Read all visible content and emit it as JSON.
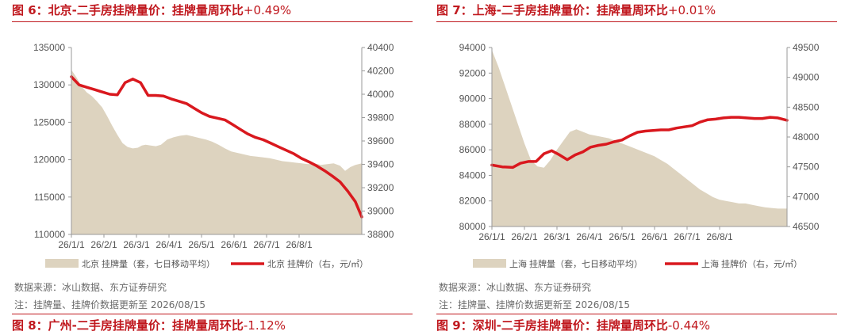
{
  "panels": [
    {
      "fig_title": "图 6：北京-二手房挂牌量价：挂牌量周环比",
      "fig_pct": "+0.49%",
      "source": "数据来源：冰山数据、东方证券研究",
      "note": "注：挂牌量、挂牌价数据更新至 2026/08/15",
      "chart_data": {
        "type": "area+line",
        "x_ticks": [
          "26/1/1",
          "26/2/1",
          "26/3/1",
          "26/4/1",
          "26/5/1",
          "26/6/1",
          "26/7/1",
          "26/8/1"
        ],
        "x_range": [
          0,
          227
        ],
        "left_axis": {
          "ticks": [
            "110000",
            "115000",
            "120000",
            "125000",
            "130000",
            "135000"
          ],
          "ylim": [
            110000,
            135000
          ]
        },
        "right_axis": {
          "ticks": [
            "38800",
            "39000",
            "39200",
            "39400",
            "39600",
            "39800",
            "40000",
            "40200",
            "40400"
          ],
          "ylim": [
            38800,
            40400
          ]
        },
        "series": [
          {
            "name": "北京 挂牌量（套，七日移动平均）",
            "type": "area",
            "axis": "left",
            "color": "#ddd3bf",
            "points": [
              [
                0,
                132000
              ],
              [
                4,
                131000
              ],
              [
                8,
                129800
              ],
              [
                12,
                129000
              ],
              [
                16,
                128500
              ],
              [
                20,
                127800
              ],
              [
                24,
                127000
              ],
              [
                28,
                125800
              ],
              [
                32,
                124500
              ],
              [
                36,
                123300
              ],
              [
                40,
                122200
              ],
              [
                44,
                121700
              ],
              [
                48,
                121500
              ],
              [
                52,
                121600
              ],
              [
                55,
                121900
              ],
              [
                58,
                122000
              ],
              [
                62,
                121900
              ],
              [
                66,
                121800
              ],
              [
                70,
                122000
              ],
              [
                75,
                122700
              ],
              [
                80,
                123000
              ],
              [
                85,
                123200
              ],
              [
                90,
                123300
              ],
              [
                95,
                123100
              ],
              [
                100,
                122900
              ],
              [
                105,
                122700
              ],
              [
                110,
                122400
              ],
              [
                115,
                122000
              ],
              [
                120,
                121500
              ],
              [
                125,
                121100
              ],
              [
                130,
                120900
              ],
              [
                135,
                120700
              ],
              [
                140,
                120500
              ],
              [
                145,
                120400
              ],
              [
                150,
                120300
              ],
              [
                155,
                120200
              ],
              [
                160,
                120000
              ],
              [
                165,
                119800
              ],
              [
                170,
                119700
              ],
              [
                175,
                119600
              ],
              [
                180,
                119500
              ],
              [
                185,
                119400
              ],
              [
                190,
                119500
              ],
              [
                195,
                119300
              ],
              [
                200,
                119400
              ],
              [
                205,
                119500
              ],
              [
                210,
                119200
              ],
              [
                214,
                118500
              ],
              [
                218,
                119000
              ],
              [
                222,
                119300
              ],
              [
                227,
                119500
              ]
            ]
          },
          {
            "name": "北京 挂牌价（右，元/㎡）",
            "type": "line",
            "axis": "right",
            "color": "#d9181e",
            "points": [
              [
                0,
                40150
              ],
              [
                6,
                40080
              ],
              [
                12,
                40060
              ],
              [
                18,
                40040
              ],
              [
                24,
                40020
              ],
              [
                30,
                40000
              ],
              [
                36,
                39995
              ],
              [
                42,
                40100
              ],
              [
                48,
                40130
              ],
              [
                54,
                40100
              ],
              [
                60,
                39990
              ],
              [
                66,
                39990
              ],
              [
                72,
                39985
              ],
              [
                78,
                39960
              ],
              [
                84,
                39940
              ],
              [
                90,
                39920
              ],
              [
                96,
                39880
              ],
              [
                102,
                39840
              ],
              [
                108,
                39810
              ],
              [
                114,
                39795
              ],
              [
                120,
                39780
              ],
              [
                126,
                39740
              ],
              [
                132,
                39700
              ],
              [
                138,
                39660
              ],
              [
                144,
                39630
              ],
              [
                150,
                39610
              ],
              [
                156,
                39580
              ],
              [
                162,
                39550
              ],
              [
                168,
                39520
              ],
              [
                174,
                39490
              ],
              [
                180,
                39450
              ],
              [
                186,
                39420
              ],
              [
                192,
                39385
              ],
              [
                198,
                39345
              ],
              [
                204,
                39300
              ],
              [
                210,
                39250
              ],
              [
                216,
                39170
              ],
              [
                222,
                39080
              ],
              [
                227,
                38950
              ]
            ]
          }
        ]
      }
    },
    {
      "fig_title": "图 7：上海-二手房挂牌量价：挂牌量周环比",
      "fig_pct": "+0.01%",
      "source": "数据来源：冰山数据、东方证券研究",
      "note": "注：挂牌量、挂牌价数据更新至 2026/08/15",
      "chart_data": {
        "type": "area+line",
        "x_ticks": [
          "26/1/1",
          "26/2/1",
          "26/3/1",
          "26/4/1",
          "26/5/1",
          "26/6/1",
          "26/7/1",
          "26/8/1"
        ],
        "x_range": [
          0,
          227
        ],
        "left_axis": {
          "ticks": [
            "80000",
            "82000",
            "84000",
            "86000",
            "88000",
            "90000",
            "92000",
            "94000"
          ],
          "ylim": [
            80000,
            94000
          ]
        },
        "right_axis": {
          "ticks": [
            "46500",
            "47000",
            "47500",
            "48000",
            "48500",
            "49000",
            "49500"
          ],
          "ylim": [
            46500,
            49500
          ]
        },
        "series": [
          {
            "name": "上海 挂牌量（套，七日移动平均）",
            "type": "area",
            "axis": "left",
            "color": "#ddd3bf",
            "points": [
              [
                0,
                93800
              ],
              [
                5,
                92500
              ],
              [
                10,
                91000
              ],
              [
                15,
                89500
              ],
              [
                20,
                88000
              ],
              [
                25,
                86500
              ],
              [
                30,
                85200
              ],
              [
                35,
                84700
              ],
              [
                40,
                84600
              ],
              [
                45,
                85200
              ],
              [
                50,
                86000
              ],
              [
                55,
                86700
              ],
              [
                60,
                87400
              ],
              [
                65,
                87600
              ],
              [
                70,
                87400
              ],
              [
                75,
                87200
              ],
              [
                80,
                87100
              ],
              [
                85,
                87000
              ],
              [
                90,
                86900
              ],
              [
                95,
                86700
              ],
              [
                100,
                86500
              ],
              [
                105,
                86300
              ],
              [
                110,
                86100
              ],
              [
                115,
                85900
              ],
              [
                120,
                85700
              ],
              [
                125,
                85500
              ],
              [
                130,
                85200
              ],
              [
                135,
                84900
              ],
              [
                140,
                84500
              ],
              [
                145,
                84100
              ],
              [
                150,
                83700
              ],
              [
                155,
                83300
              ],
              [
                160,
                82900
              ],
              [
                165,
                82600
              ],
              [
                170,
                82300
              ],
              [
                175,
                82100
              ],
              [
                180,
                82000
              ],
              [
                185,
                81900
              ],
              [
                190,
                81800
              ],
              [
                195,
                81800
              ],
              [
                200,
                81700
              ],
              [
                205,
                81600
              ],
              [
                210,
                81500
              ],
              [
                215,
                81450
              ],
              [
                220,
                81400
              ],
              [
                227,
                81400
              ]
            ]
          },
          {
            "name": "上海 挂牌价（右，元/㎡）",
            "type": "line",
            "axis": "right",
            "color": "#d9181e",
            "points": [
              [
                0,
                47530
              ],
              [
                8,
                47500
              ],
              [
                16,
                47490
              ],
              [
                22,
                47560
              ],
              [
                28,
                47590
              ],
              [
                34,
                47590
              ],
              [
                40,
                47720
              ],
              [
                46,
                47770
              ],
              [
                52,
                47700
              ],
              [
                58,
                47620
              ],
              [
                64,
                47700
              ],
              [
                70,
                47750
              ],
              [
                76,
                47830
              ],
              [
                82,
                47860
              ],
              [
                88,
                47880
              ],
              [
                94,
                47920
              ],
              [
                100,
                47950
              ],
              [
                106,
                48020
              ],
              [
                112,
                48080
              ],
              [
                118,
                48100
              ],
              [
                124,
                48110
              ],
              [
                130,
                48120
              ],
              [
                136,
                48120
              ],
              [
                142,
                48150
              ],
              [
                148,
                48170
              ],
              [
                154,
                48190
              ],
              [
                160,
                48250
              ],
              [
                166,
                48290
              ],
              [
                172,
                48300
              ],
              [
                178,
                48320
              ],
              [
                184,
                48330
              ],
              [
                190,
                48330
              ],
              [
                196,
                48320
              ],
              [
                202,
                48310
              ],
              [
                208,
                48310
              ],
              [
                214,
                48330
              ],
              [
                220,
                48320
              ],
              [
                227,
                48280
              ]
            ]
          }
        ]
      }
    }
  ],
  "bottom_titles": [
    {
      "text": "图 8：广州-二手房挂牌量价：挂牌量周环比",
      "pct": "-1.12%"
    },
    {
      "text": "图 9：深圳-二手房挂牌量价：挂牌量周环比",
      "pct": "-0.44%"
    }
  ]
}
